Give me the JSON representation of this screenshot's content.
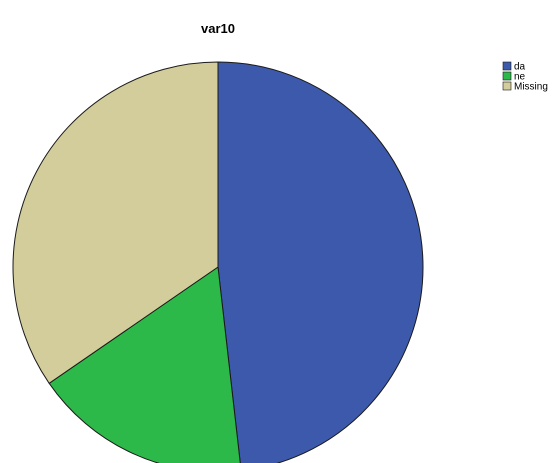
{
  "chart_data": {
    "type": "pie",
    "title": "var10",
    "legend_position": "top-right",
    "slices": [
      {
        "label": "da",
        "value": 48.2,
        "color": "#3d59ab"
      },
      {
        "label": "ne",
        "value": 17.2,
        "color": "#2db84a"
      },
      {
        "label": "Missing",
        "value": 34.6,
        "color": "#d3cd9b"
      }
    ],
    "stroke_color": "#1a1a1a"
  }
}
